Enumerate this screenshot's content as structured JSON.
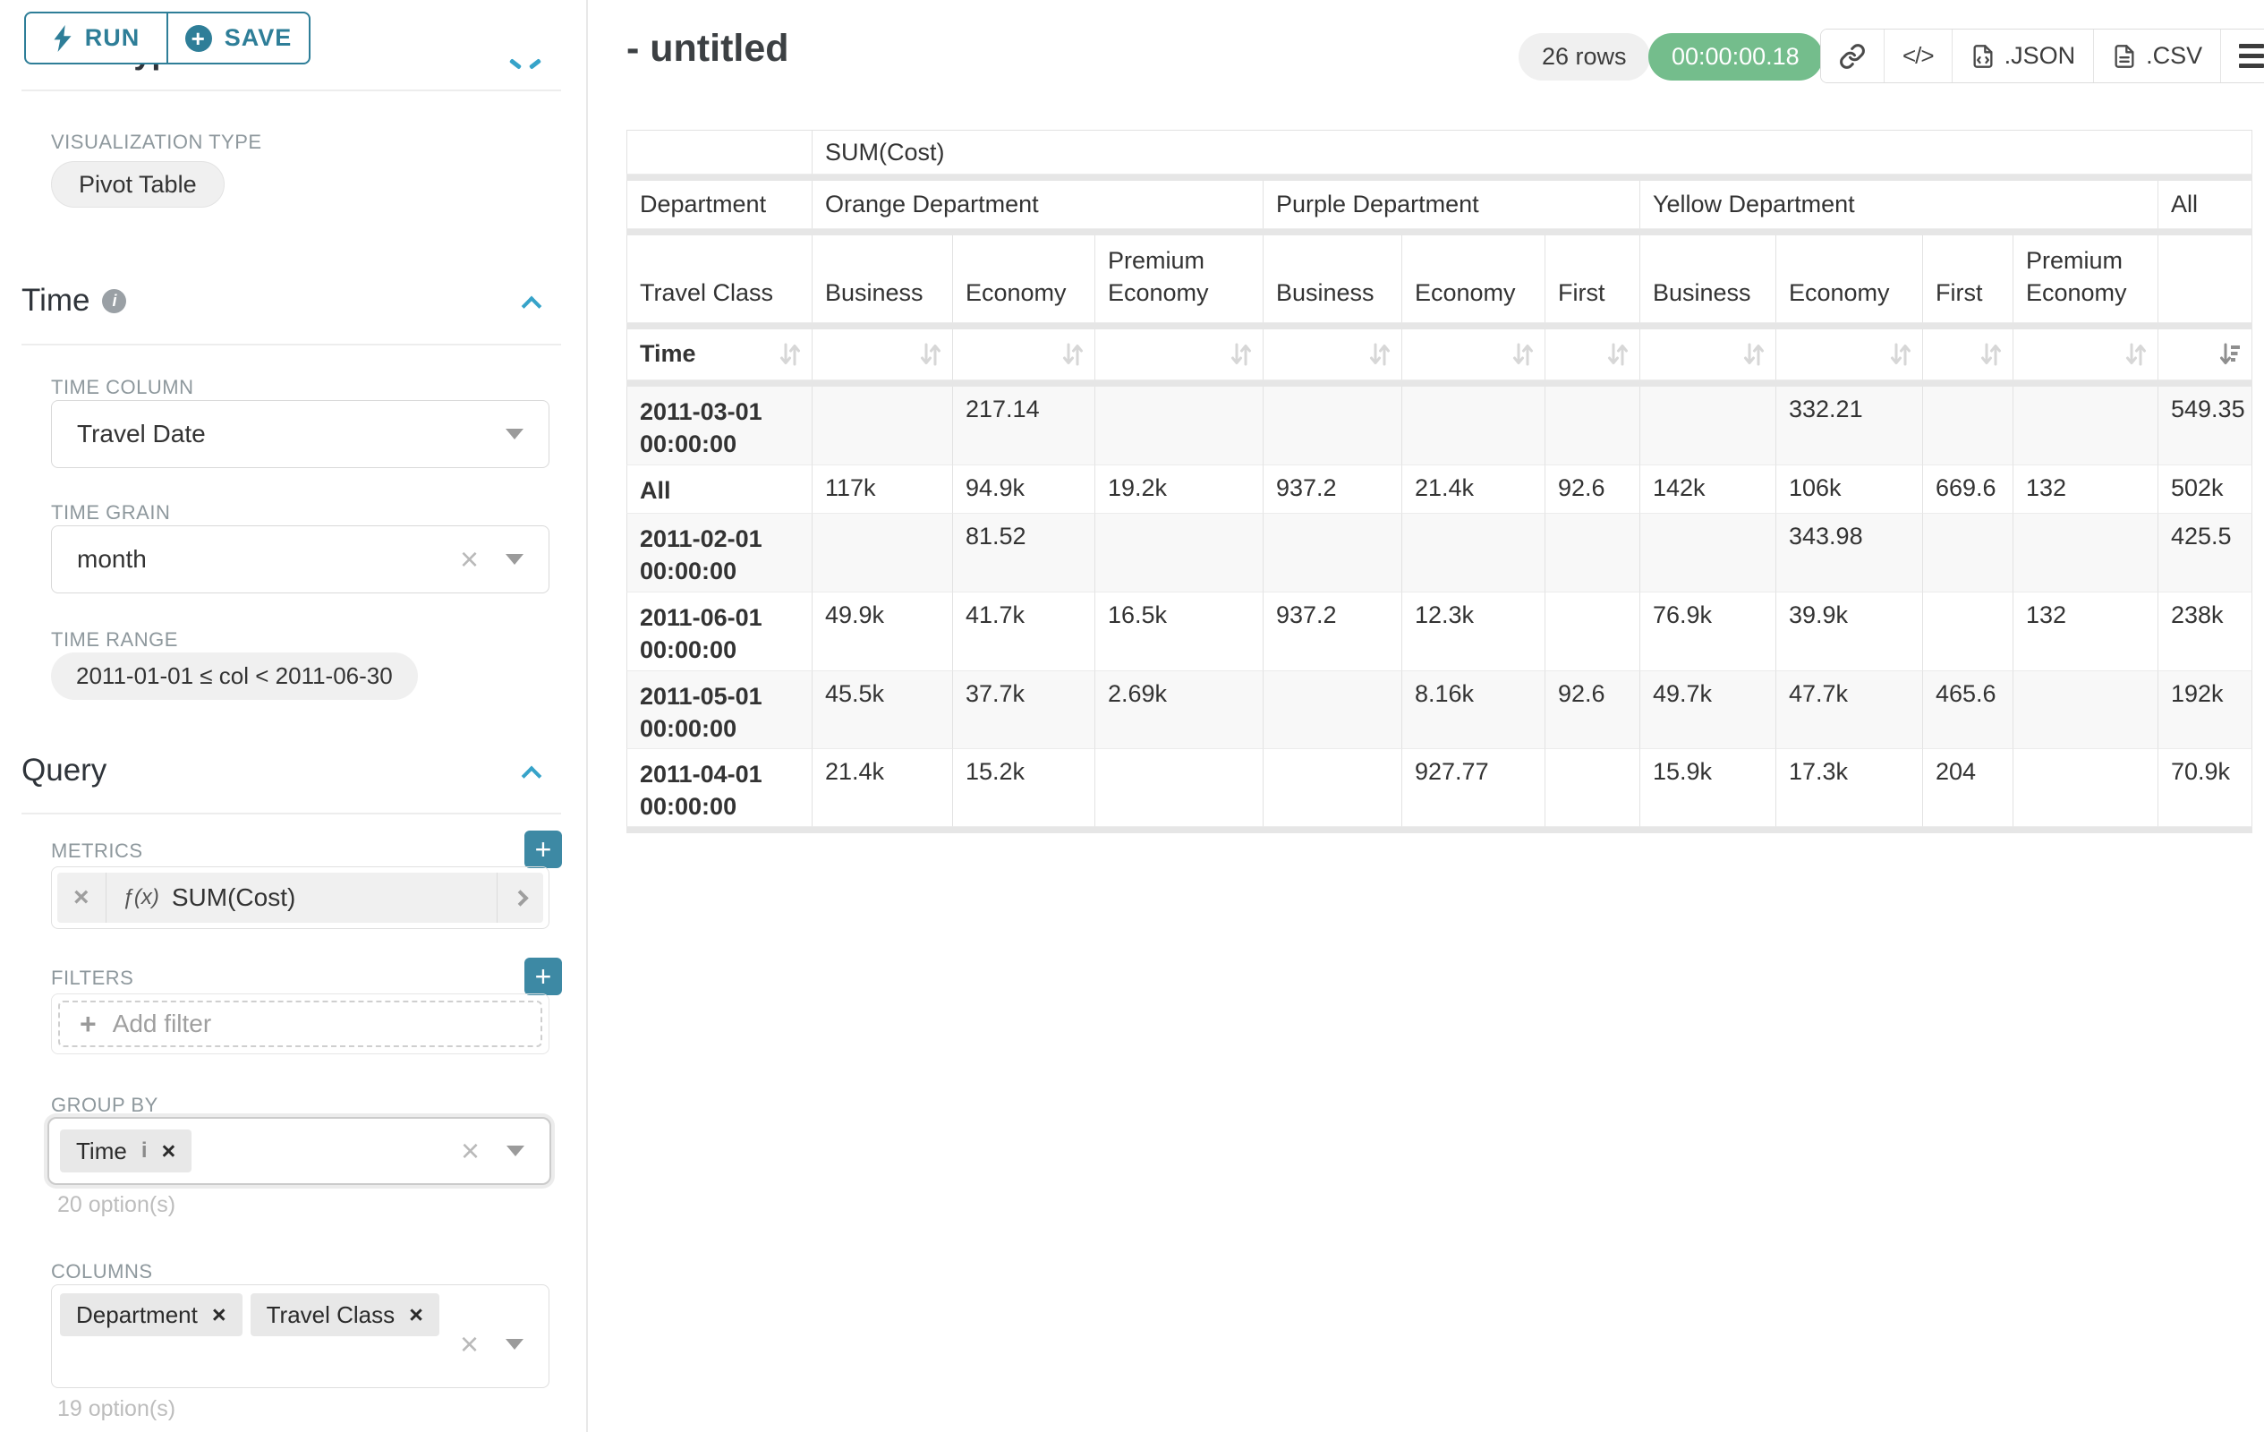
{
  "colors": {
    "accent_teal": "#2e7e98",
    "plus_button_teal": "#3d89a4",
    "chevron_blue": "#36a3c9",
    "timer_green": "#74bd8c",
    "pill_gray_bg": "#f0f0f0",
    "table_border": "#e2e2e2"
  },
  "icons": {
    "run": "lightning-bolt",
    "save": "plus-circle",
    "section_collapse": "chevron-up",
    "select_open": "caret-down",
    "metric_expand": "chevron-right",
    "toolbar": [
      "link",
      "code",
      "json-file",
      "csv-file",
      "menu"
    ]
  },
  "sidebar": {
    "run_label": "RUN",
    "save_label": "SAVE",
    "chart_type_heading": "Chart Type",
    "visualization_type_label": "VISUALIZATION TYPE",
    "visualization_type_value": "Pivot Table",
    "time_section": {
      "heading": "Time",
      "time_column_label": "TIME COLUMN",
      "time_column_value": "Travel Date",
      "time_grain_label": "TIME GRAIN",
      "time_grain_value": "month",
      "time_range_label": "TIME RANGE",
      "time_range_value": "2011-01-01 ≤ col < 2011-06-30"
    },
    "query_section": {
      "heading": "Query",
      "metrics_label": "METRICS",
      "metric_fx": "ƒ(x)",
      "metric_value": "SUM(Cost)",
      "filters_label": "FILTERS",
      "add_filter_label": "Add filter",
      "group_by_label": "GROUP BY",
      "group_by_pills": [
        "Time"
      ],
      "group_by_options": "20 option(s)",
      "columns_label": "COLUMNS",
      "columns_pills": [
        "Department",
        "Travel Class"
      ],
      "columns_options": "19 option(s)"
    }
  },
  "header": {
    "title": "- untitled",
    "rows_badge": "26 rows",
    "timer": "00:00:00.18",
    "code_glyph": "</>",
    "export_json_label": ".JSON",
    "export_csv_label": ".CSV"
  },
  "table": {
    "metric_header": "SUM(Cost)",
    "row_dim_label": "Department",
    "col_dim_label": "Travel Class",
    "time_label": "Time",
    "groups": [
      {
        "name": "Orange Department",
        "classes": [
          "Business",
          "Economy",
          "Premium Economy"
        ]
      },
      {
        "name": "Purple Department",
        "classes": [
          "Business",
          "Economy",
          "First"
        ]
      },
      {
        "name": "Yellow Department",
        "classes": [
          "Business",
          "Economy",
          "First",
          "Premium Economy"
        ]
      },
      {
        "name": "All",
        "classes": [
          ""
        ]
      }
    ],
    "sorted_desc_column": "All",
    "rows": [
      {
        "label": "2011-03-01 00:00:00",
        "values": [
          "",
          "217.14",
          "",
          "",
          "",
          "",
          "",
          "332.21",
          "",
          "",
          "549.35"
        ]
      },
      {
        "label": "All",
        "values": [
          "117k",
          "94.9k",
          "19.2k",
          "937.2",
          "21.4k",
          "92.6",
          "142k",
          "106k",
          "669.6",
          "132",
          "502k"
        ]
      },
      {
        "label": "2011-02-01 00:00:00",
        "values": [
          "",
          "81.52",
          "",
          "",
          "",
          "",
          "",
          "343.98",
          "",
          "",
          "425.5"
        ]
      },
      {
        "label": "2011-06-01 00:00:00",
        "values": [
          "49.9k",
          "41.7k",
          "16.5k",
          "937.2",
          "12.3k",
          "",
          "76.9k",
          "39.9k",
          "",
          "132",
          "238k"
        ]
      },
      {
        "label": "2011-05-01 00:00:00",
        "values": [
          "45.5k",
          "37.7k",
          "2.69k",
          "",
          "8.16k",
          "92.6",
          "49.7k",
          "47.7k",
          "465.6",
          "",
          "192k"
        ]
      },
      {
        "label": "2011-04-01 00:00:00",
        "values": [
          "21.4k",
          "15.2k",
          "",
          "",
          "927.77",
          "",
          "15.9k",
          "17.3k",
          "204",
          "",
          "70.9k"
        ]
      }
    ]
  }
}
